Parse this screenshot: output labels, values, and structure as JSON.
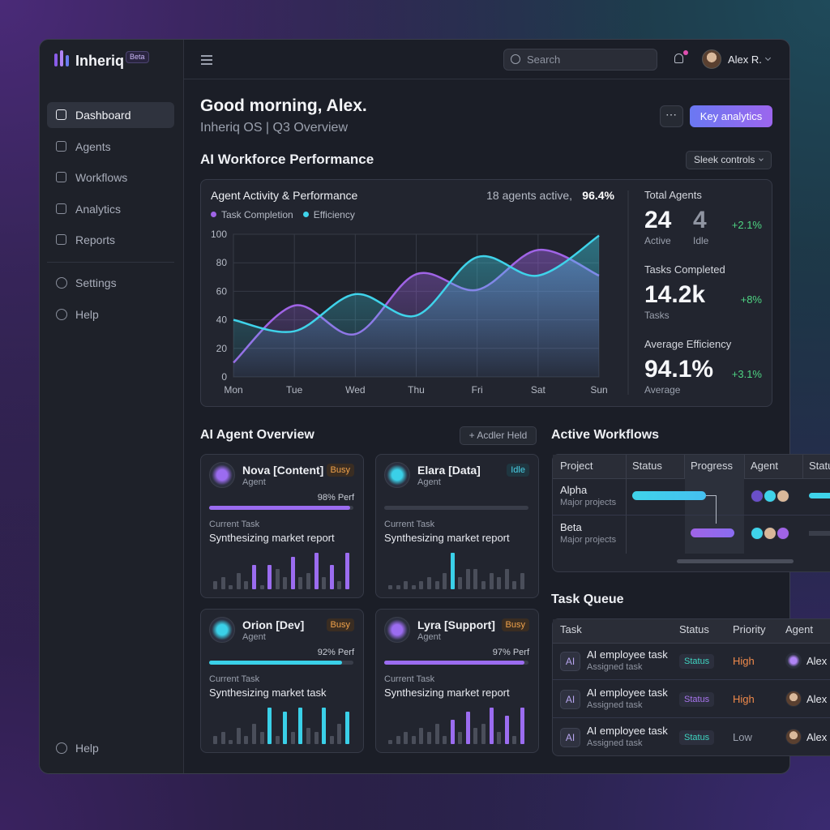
{
  "brand": {
    "name": "Inheriq",
    "badge": "Beta"
  },
  "nav": [
    "Dashboard",
    "Agents",
    "Workflows",
    "Analytics",
    "Reports"
  ],
  "nav_secondary": [
    "Settings",
    "Help"
  ],
  "nav_footer": "Help",
  "topbar": {
    "search": "Search",
    "user": "Alex R."
  },
  "header": {
    "greeting": "Good morning, Alex.",
    "subtitle": "Inheriq OS | Q3 Overview",
    "primary_button": "Key analytics"
  },
  "performance": {
    "title": "AI Workforce Performance",
    "control": "Sleek controls",
    "chart_data": {
      "type": "line",
      "title": "Agent Activity & Performance",
      "status": "18 agents active,",
      "status_value": "96.4%",
      "categories": [
        "Mon",
        "Tue",
        "Wed",
        "Thu",
        "Fri",
        "Sat",
        "Sun"
      ],
      "series": [
        {
          "name": "Task Completion",
          "color": "#a064e6",
          "values": [
            10,
            50,
            30,
            72,
            61,
            89,
            71
          ]
        },
        {
          "name": "Efficiency",
          "color": "#3fd3ea",
          "values": [
            40,
            32,
            58,
            43,
            84,
            71,
            99
          ]
        }
      ],
      "ylim": [
        0,
        100
      ],
      "yticks": [
        0,
        20,
        40,
        60,
        80,
        100
      ],
      "grid": true
    },
    "stats": [
      {
        "label": "Total Agents",
        "value": "24",
        "caption": "Active",
        "value2": "4",
        "caption2": "Idle",
        "change": "+2.1%"
      },
      {
        "label": "Tasks Completed",
        "value": "14.2k",
        "caption": "Tasks",
        "change": "+8%"
      },
      {
        "label": "Average Efficiency",
        "value": "94.1%",
        "caption": "Average",
        "change": "+3.1%"
      }
    ]
  },
  "agents": {
    "title": "AI Agent Overview",
    "button": "+ Acdler Held",
    "task_label": "Current Task",
    "cards": [
      {
        "name": "Nova [Content]",
        "role": "Agent",
        "status": "Busy",
        "perf": 98,
        "perf_label": "98% Perf",
        "task": "Synthesizing market report",
        "color": "#9b6cf0",
        "activity": [
          2,
          3,
          1,
          4,
          2,
          6,
          1,
          6,
          5,
          3,
          8,
          3,
          4,
          9,
          3,
          6,
          2,
          9
        ]
      },
      {
        "name": "Elara [Data]",
        "role": "Agent",
        "status": "Idle",
        "task": "Synthesizing market report",
        "color": "#3ad0e8",
        "activity": [
          1,
          1,
          2,
          1,
          2,
          3,
          2,
          4,
          9,
          3,
          5,
          5,
          2,
          4,
          3,
          5,
          2,
          4
        ]
      },
      {
        "name": "Orion [Dev]",
        "role": "Agent",
        "status": "Busy",
        "perf": 92,
        "perf_label": "92% Perf",
        "task": "Synthesizing market task",
        "color": "#3ad0e8",
        "activity": [
          2,
          3,
          1,
          4,
          2,
          5,
          3,
          9,
          2,
          8,
          3,
          9,
          4,
          3,
          9,
          2,
          5,
          8
        ]
      },
      {
        "name": "Lyra [Support]",
        "role": "Agent",
        "status": "Busy",
        "perf": 97,
        "perf_label": "97% Perf",
        "task": "Synthesizing market report",
        "color": "#9b6cf0",
        "activity": [
          1,
          2,
          3,
          2,
          4,
          3,
          5,
          2,
          6,
          3,
          8,
          4,
          5,
          9,
          3,
          7,
          2,
          9
        ]
      }
    ]
  },
  "workflows": {
    "title": "Active Workflows",
    "columns": [
      "Project",
      "Status",
      "Progress",
      "Agent",
      "Statu"
    ],
    "rows": [
      {
        "name": "Alpha",
        "sub": "Major projects"
      },
      {
        "name": "Beta",
        "sub": "Major projects"
      }
    ]
  },
  "task_queue": {
    "title": "Task Queue",
    "columns": [
      "Task",
      "Status",
      "Priority",
      "Agent"
    ],
    "rows": [
      {
        "icon": "AI",
        "task": "AI employee task",
        "sub": "Assigned task",
        "status": "Status",
        "status_color": "#3fd3c0",
        "priority": "High",
        "priority_color": "#f08a4b",
        "agent": "Alex"
      },
      {
        "icon": "AI",
        "task": "AI employee task",
        "sub": "Assigned task",
        "status": "Status",
        "status_color": "#a874ee",
        "priority": "High",
        "priority_color": "#f08a4b",
        "agent": "Alex"
      },
      {
        "icon": "AI",
        "task": "AI employee task",
        "sub": "Assigned task",
        "status": "Status",
        "status_color": "#3fd3c0",
        "priority": "Low",
        "priority_color": "#9aa0ad",
        "agent": "Alex"
      }
    ]
  }
}
